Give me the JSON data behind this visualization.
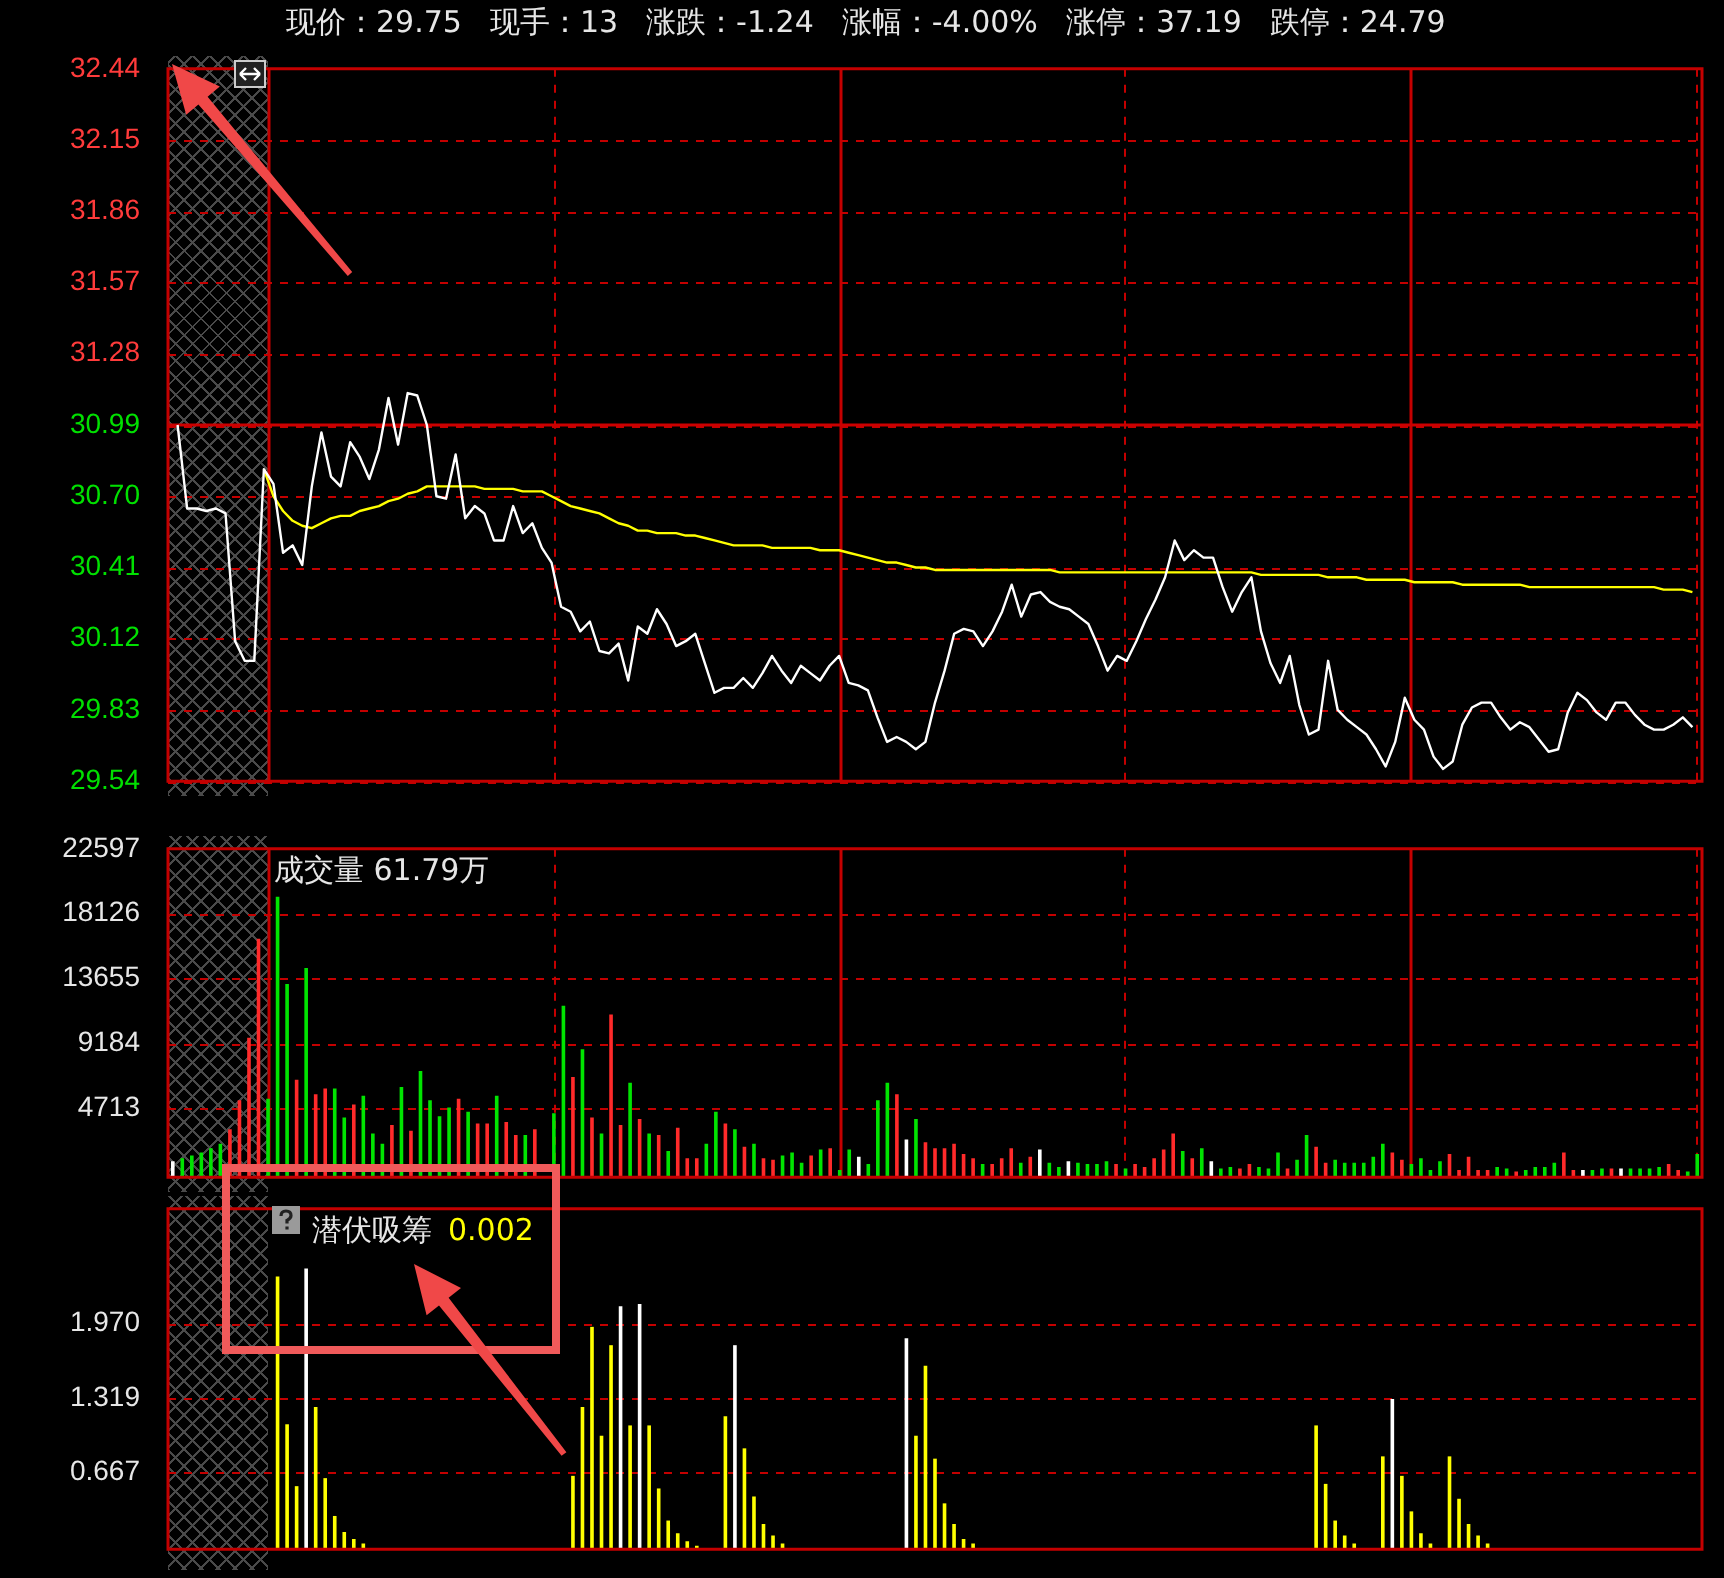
{
  "chart_data": [
    {
      "type": "line",
      "annotations": [
        "现价：29.75",
        "现手：13",
        "涨跌：-1.24",
        "涨幅：-4.00%",
        "涨停：37.19",
        "跌停：24.79"
      ],
      "tick_labels": "y",
      "grid": true,
      "categories": [
        null,
        null,
        null,
        null,
        null,
        null,
        null,
        null,
        null,
        null,
        null,
        null,
        null,
        null,
        null,
        null,
        null,
        null,
        null,
        null,
        null,
        null,
        null,
        null,
        null,
        null,
        null,
        null,
        null,
        null,
        null,
        null,
        null,
        null,
        null,
        null,
        null,
        null,
        null,
        null,
        null,
        null,
        null,
        null,
        null,
        null,
        null,
        null,
        null,
        null,
        null,
        null,
        null,
        null,
        null,
        null,
        null,
        null,
        null,
        null,
        null,
        null,
        null,
        null,
        null,
        null,
        null,
        null,
        null,
        null,
        null,
        null,
        null,
        null,
        null,
        null,
        null,
        null,
        null,
        null,
        null,
        null,
        null,
        null,
        null,
        null,
        null,
        null,
        null,
        null,
        null,
        null,
        null,
        null,
        null,
        null,
        null,
        null,
        null,
        null,
        null,
        null,
        null,
        null,
        null,
        null,
        null,
        null,
        null,
        null,
        null,
        null,
        null,
        null,
        null,
        null,
        null,
        null,
        null,
        null,
        null,
        null,
        null,
        null,
        null,
        null,
        null,
        null,
        null,
        null,
        null,
        null,
        null,
        null,
        null,
        null,
        null,
        null,
        null,
        null,
        null,
        null,
        null,
        null,
        null,
        null,
        null,
        null,
        null,
        null,
        null,
        null,
        null,
        null,
        null,
        null,
        null,
        null,
        null,
        null,
        null
      ],
      "ylim": [
        29.54,
        32.44
      ],
      "yticks": [
        29.54,
        {
          "value": 29.83,
          "label": "29.83"
        },
        {
          "value": 30.12,
          "label": "30.12"
        },
        {
          "value": 30.41,
          "label": "30.41"
        },
        {
          "value": 30.7,
          "label": "30.70"
        },
        {
          "value": 30.99,
          "label": "30.99"
        },
        {
          "value": 31.28,
          "label": "31.28"
        },
        {
          "value": 31.57,
          "label": "31.57"
        },
        {
          "value": 31.86,
          "label": "31.86"
        },
        {
          "value": 32.15,
          "label": "32.15"
        },
        {
          "value": 32.44,
          "label": "32.44"
        }
      ],
      "ref_lines": [
        {
          "axis": "y",
          "value": 30.99,
          "color": "#cc0000"
        }
      ],
      "series": [
        {
          "color": "#ffffff",
          "values": [
            null,
            30.99,
            30.65,
            30.65,
            30.64,
            30.65,
            30.63,
            30.11,
            30.03,
            30.03,
            30.81,
            30.75,
            30.47,
            30.5,
            30.42,
            30.74,
            30.96,
            30.78,
            30.74,
            30.92,
            30.86,
            30.77,
            30.89,
            31.1,
            30.91,
            31.12,
            31.11,
            30.99,
            30.7,
            30.69,
            30.87,
            30.61,
            30.66,
            30.63,
            30.52,
            30.52,
            30.66,
            30.55,
            30.59,
            30.49,
            30.43,
            30.25,
            30.23,
            30.15,
            30.19,
            30.07,
            30.06,
            30.1,
            29.95,
            30.17,
            30.14,
            30.24,
            30.18,
            30.09,
            30.11,
            30.14,
            30.02,
            29.9,
            29.92,
            29.92,
            29.96,
            29.92,
            29.98,
            30.05,
            29.99,
            29.94,
            30.01,
            29.98,
            29.95,
            30.01,
            30.05,
            29.94,
            29.93,
            29.91,
            29.8,
            29.7,
            29.72,
            29.7,
            29.67,
            29.7,
            29.86,
            29.99,
            30.14,
            30.16,
            30.15,
            30.09,
            30.15,
            30.23,
            30.34,
            30.21,
            30.3,
            30.31,
            30.27,
            30.25,
            30.24,
            30.21,
            30.18,
            30.09,
            29.99,
            30.05,
            30.03,
            30.11,
            30.2,
            30.28,
            30.37,
            30.52,
            30.44,
            30.48,
            30.45,
            30.45,
            30.33,
            30.23,
            30.31,
            30.37,
            30.15,
            30.02,
            29.94,
            30.05,
            29.85,
            29.73,
            29.75,
            30.03,
            29.83,
            29.79,
            29.76,
            29.73,
            29.67,
            29.6,
            29.7,
            29.88,
            29.79,
            29.75,
            29.64,
            29.59,
            29.62,
            29.77,
            29.84,
            29.86,
            29.86,
            29.8,
            29.75,
            29.78,
            29.76,
            29.71,
            29.66,
            29.67,
            29.82,
            29.9,
            29.87,
            29.82,
            29.79,
            29.86,
            29.86,
            29.81,
            29.77,
            29.75,
            29.75,
            29.77,
            29.8,
            29.76,
            null
          ]
        },
        {
          "color": "#ffff00",
          "values": [
            null,
            null,
            null,
            null,
            null,
            null,
            null,
            null,
            null,
            null,
            30.81,
            30.7,
            30.64,
            30.6,
            30.58,
            30.57,
            30.59,
            30.61,
            30.62,
            30.62,
            30.64,
            30.65,
            30.66,
            30.68,
            30.69,
            30.71,
            30.72,
            30.74,
            30.74,
            30.74,
            30.74,
            30.74,
            30.74,
            30.73,
            30.73,
            30.73,
            30.73,
            30.72,
            30.72,
            30.72,
            30.7,
            30.68,
            30.66,
            30.65,
            30.64,
            30.63,
            30.61,
            30.59,
            30.58,
            30.56,
            30.56,
            30.55,
            30.55,
            30.55,
            30.54,
            30.54,
            30.53,
            30.52,
            30.51,
            30.5,
            30.5,
            30.5,
            30.5,
            30.49,
            30.49,
            30.49,
            30.49,
            30.49,
            30.48,
            30.48,
            30.48,
            30.47,
            30.46,
            30.45,
            30.44,
            30.43,
            30.43,
            30.42,
            30.41,
            30.41,
            30.4,
            30.4,
            30.4,
            30.4,
            30.4,
            30.4,
            30.4,
            30.4,
            30.4,
            30.4,
            30.4,
            30.4,
            30.4,
            30.39,
            30.39,
            30.39,
            30.39,
            30.39,
            30.39,
            30.39,
            30.39,
            30.39,
            30.39,
            30.39,
            30.39,
            30.39,
            30.39,
            30.39,
            30.39,
            30.39,
            30.39,
            30.39,
            30.39,
            30.39,
            30.38,
            30.38,
            30.38,
            30.38,
            30.38,
            30.38,
            30.38,
            30.37,
            30.37,
            30.37,
            30.37,
            30.36,
            30.36,
            30.36,
            30.36,
            30.36,
            30.35,
            30.35,
            30.35,
            30.35,
            30.35,
            30.34,
            30.34,
            30.34,
            30.34,
            30.34,
            30.34,
            30.34,
            30.33,
            30.33,
            30.33,
            30.33,
            30.33,
            30.33,
            30.33,
            30.33,
            30.33,
            30.33,
            30.33,
            30.33,
            30.33,
            30.33,
            30.32,
            30.32,
            30.32,
            30.31,
            null
          ]
        }
      ]
    },
    {
      "type": "bar",
      "title": "成交量 61.79万",
      "tick_labels": "y",
      "grid": true,
      "ylim": [
        0,
        22597
      ],
      "yticks": [
        4713,
        9184,
        13655,
        18126,
        22597
      ],
      "categories": [
        null,
        null,
        null,
        null,
        null,
        null,
        null,
        null,
        null,
        null,
        null,
        null,
        null,
        null,
        null,
        null,
        null,
        null,
        null,
        null,
        null,
        null,
        null,
        null,
        null,
        null,
        null,
        null,
        null,
        null,
        null,
        null,
        null,
        null,
        null,
        null,
        null,
        null,
        null,
        null,
        null,
        null,
        null,
        null,
        null,
        null,
        null,
        null,
        null,
        null,
        null,
        null,
        null,
        null,
        null,
        null,
        null,
        null,
        null,
        null,
        null,
        null,
        null,
        null,
        null,
        null,
        null,
        null,
        null,
        null,
        null,
        null,
        null,
        null,
        null,
        null,
        null,
        null,
        null,
        null,
        null,
        null,
        null,
        null,
        null,
        null,
        null,
        null,
        null,
        null,
        null,
        null,
        null,
        null,
        null,
        null,
        null,
        null,
        null,
        null,
        null,
        null,
        null,
        null,
        null,
        null,
        null,
        null,
        null,
        null,
        null,
        null,
        null,
        null,
        null,
        null,
        null,
        null,
        null,
        null,
        null,
        null,
        null,
        null,
        null,
        null,
        null,
        null,
        null,
        null,
        null,
        null,
        null,
        null,
        null,
        null,
        null,
        null,
        null,
        null,
        null,
        null,
        null,
        null,
        null,
        null,
        null,
        null,
        null,
        null,
        null,
        null,
        null,
        null,
        null,
        null,
        null,
        null,
        null,
        null,
        null
      ],
      "values": [
        1100,
        1300,
        1500,
        1700,
        2000,
        2300,
        3300,
        5300,
        9600,
        16400,
        5400,
        19300,
        13300,
        6700,
        14400,
        5700,
        6100,
        6100,
        4100,
        5000,
        5600,
        3000,
        2300,
        3600,
        6200,
        3200,
        7300,
        5300,
        4200,
        4800,
        5400,
        4500,
        3700,
        3700,
        5600,
        3800,
        2900,
        2900,
        3300,
        null,
        4400,
        11800,
        6900,
        8800,
        4100,
        3000,
        11200,
        3600,
        6500,
        4000,
        3000,
        2900,
        1800,
        3400,
        1300,
        1300,
        2300,
        4500,
        3700,
        3300,
        2100,
        2300,
        1300,
        1200,
        1500,
        1700,
        1000,
        1500,
        1900,
        2000,
        500,
        1900,
        1400,
        900,
        5300,
        6500,
        5700,
        2600,
        4000,
        2400,
        2000,
        2000,
        2300,
        1600,
        1300,
        900,
        900,
        1300,
        2000,
        1000,
        1400,
        1900,
        1000,
        700,
        1100,
        1000,
        900,
        900,
        1100,
        900,
        600,
        900,
        700,
        1300,
        1900,
        3000,
        1800,
        1300,
        2000,
        1100,
        600,
        700,
        600,
        900,
        700,
        600,
        1700,
        600,
        1200,
        2900,
        2100,
        1000,
        1200,
        1000,
        1000,
        1000,
        1400,
        2300,
        1700,
        1200,
        900,
        1300,
        500,
        1100,
        1600,
        500,
        1400,
        500,
        500,
        700,
        600,
        400,
        500,
        700,
        700,
        1000,
        1700,
        500,
        500,
        500,
        600,
        600,
        600,
        600,
        600,
        600,
        700,
        900,
        500,
        400,
        1600
      ],
      "colors": [
        "#ffffff",
        "#00e400",
        "#00e400",
        "#00e400",
        "#00e400",
        "#00e400",
        "#ff2a2a",
        "#ff2a2a",
        "#ff2a2a",
        "#ff2a2a",
        "#00e400",
        "#00e400",
        "#00e400",
        "#ff2a2a",
        "#00e400",
        "#ff2a2a",
        "#ff2a2a",
        "#00e400",
        "#00e400",
        "#ff2a2a",
        "#00e400",
        "#00e400",
        "#00e400",
        "#ff2a2a",
        "#00e400",
        "#ff2a2a",
        "#00e400",
        "#00e400",
        "#00e400",
        "#00e400",
        "#ff2a2a",
        "#00e400",
        "#ff2a2a",
        "#ff2a2a",
        "#00e400",
        "#ff2a2a",
        "#ff2a2a",
        "#00e400",
        "#ff2a2a",
        "#00e400",
        "#00e400",
        "#00e400",
        "#ff2a2a",
        "#00e400",
        "#ff2a2a",
        "#00e400",
        "#ff2a2a",
        "#ff2a2a",
        "#00e400",
        "#ff2a2a",
        "#00e400",
        "#ff2a2a",
        "#00e400",
        "#ff2a2a",
        "#ff2a2a",
        "#ff2a2a",
        "#00e400",
        "#00e400",
        "#ff2a2a",
        "#00e400",
        "#ff2a2a",
        "#00e400",
        "#ff2a2a",
        "#ff2a2a",
        "#00e400",
        "#00e400",
        "#00e400",
        "#ff2a2a",
        "#00e400",
        "#ff2a2a",
        "#00e400",
        "#00e400",
        "#ffffff",
        "#00e400",
        "#00e400",
        "#00e400",
        "#ff2a2a",
        "#ffffff",
        "#00e400",
        "#ff2a2a",
        "#ff2a2a",
        "#ff2a2a",
        "#ff2a2a",
        "#ff2a2a",
        "#ff2a2a",
        "#00e400",
        "#ff2a2a",
        "#ff2a2a",
        "#ff2a2a",
        "#00e400",
        "#ff2a2a",
        "#ffffff",
        "#00e400",
        "#00e400",
        "#ffffff",
        "#00e400",
        "#00e400",
        "#00e400",
        "#00e400",
        "#ff2a2a",
        "#00e400",
        "#ff2a2a",
        "#ff2a2a",
        "#ff2a2a",
        "#ff2a2a",
        "#ff2a2a",
        "#00e400",
        "#ff2a2a",
        "#00e400",
        "#ffffff",
        "#00e400",
        "#00e400",
        "#ff2a2a",
        "#ff2a2a",
        "#00e400",
        "#00e400",
        "#00e400",
        "#ff2a2a",
        "#00e400",
        "#00e400",
        "#ff2a2a",
        "#ff2a2a",
        "#00e400",
        "#00e400",
        "#00e400",
        "#00e400",
        "#00e400",
        "#00e400",
        "#ff2a2a",
        "#ff2a2a",
        "#00e400",
        "#00e400",
        "#00e400",
        "#00e400",
        "#ff2a2a",
        "#ff2a2a",
        "#ff2a2a",
        "#ff2a2a",
        "#ff2a2a",
        "#00e400",
        "#00e400",
        "#ff2a2a",
        "#00e400",
        "#00e400",
        "#00e400",
        "#00e400",
        "#ff2a2a",
        "#ff2a2a",
        "#ffffff",
        "#00e400",
        "#00e400",
        "#ff2a2a",
        "#ffffff",
        "#00e400",
        "#00e400",
        "#00e400",
        "#00e400",
        "#ff2a2a",
        "#ff2a2a",
        "#00e400",
        "#00e400"
      ]
    },
    {
      "type": "bar",
      "title": "潜伏吸筹",
      "annotations": [
        "0.002"
      ],
      "tick_labels": "y",
      "grid": "y",
      "ylim": [
        0,
        2.97
      ],
      "yticks": [
        0.667,
        1.319,
        {
          "value": 1.97,
          "label": "1.970"
        }
      ],
      "categories": [
        null,
        null,
        null,
        null,
        null,
        null,
        null,
        null,
        null,
        null,
        null,
        null,
        null,
        null,
        null,
        null,
        null,
        null,
        null,
        null,
        null,
        null,
        null,
        null,
        null,
        null,
        null,
        null,
        null,
        null,
        null,
        null,
        null,
        null,
        null,
        null,
        null,
        null,
        null,
        null,
        null,
        null,
        null,
        null,
        null,
        null,
        null,
        null,
        null,
        null,
        null,
        null,
        null,
        null,
        null,
        null,
        null,
        null,
        null,
        null,
        null,
        null,
        null,
        null,
        null,
        null,
        null,
        null,
        null,
        null,
        null,
        null,
        null,
        null,
        null,
        null,
        null,
        null,
        null,
        null,
        null,
        null,
        null,
        null,
        null,
        null,
        null,
        null,
        null,
        null,
        null,
        null,
        null,
        null,
        null,
        null,
        null,
        null,
        null,
        null,
        null,
        null,
        null,
        null,
        null,
        null,
        null,
        null,
        null,
        null,
        null,
        null,
        null,
        null,
        null,
        null,
        null,
        null,
        null,
        null,
        null,
        null,
        null,
        null,
        null,
        null,
        null,
        null,
        null,
        null,
        null,
        null,
        null,
        null,
        null,
        null,
        null,
        null,
        null,
        null,
        null,
        null,
        null,
        null,
        null,
        null,
        null,
        null,
        null,
        null,
        null,
        null,
        null,
        null,
        null,
        null,
        null,
        null,
        null,
        null,
        null
      ],
      "values": [
        null,
        null,
        null,
        null,
        null,
        null,
        null,
        null,
        null,
        null,
        0,
        2.38,
        1.09,
        0.55,
        2.45,
        1.24,
        0.62,
        0.29,
        0.15,
        0.09,
        0.05,
        null,
        0,
        0,
        0,
        0,
        0,
        0,
        0,
        0,
        0,
        0,
        0,
        0,
        0,
        0,
        0,
        0,
        0,
        0,
        0,
        0,
        0.64,
        1.24,
        1.94,
        0.99,
        1.78,
        2.12,
        1.08,
        2.14,
        1.08,
        0.53,
        0.25,
        0.14,
        0.07,
        0.03,
        null,
        0,
        1.16,
        1.78,
        0.88,
        0.46,
        0.22,
        0.12,
        0.05,
        null,
        0,
        0,
        0,
        0,
        0,
        0,
        0,
        0,
        0,
        0,
        0,
        1.84,
        0.99,
        1.6,
        0.79,
        0.4,
        0.22,
        0.09,
        0.05,
        null,
        0,
        0,
        0,
        0,
        0,
        0,
        0,
        0,
        0,
        0,
        0,
        0,
        0,
        0,
        0,
        0,
        0,
        0,
        0,
        0,
        0,
        0,
        0,
        0,
        0,
        0,
        0,
        0,
        0,
        0,
        0,
        0,
        0,
        0,
        1.08,
        0.57,
        0.25,
        0.12,
        0.05,
        null,
        0,
        0.81,
        1.31,
        0.64,
        0.33,
        0.14,
        0.05,
        0,
        0.81,
        0.44,
        0.22,
        0.12,
        0.05,
        null,
        0,
        0,
        0,
        0,
        0,
        0,
        0,
        0,
        0,
        0,
        0,
        0,
        0,
        0,
        0,
        0,
        0,
        0,
        0,
        0,
        0
      ],
      "colors": [
        "#ffff00",
        "#ffff00",
        "#ffff00",
        "#ffff00",
        "#ffff00",
        "#ffff00",
        "#ffff00",
        "#ffff00",
        "#ffff00",
        "#ffff00",
        "#ffff00",
        "#ffff00",
        "#ffff00",
        "#ffff00",
        "#ffffff",
        "#ffff00",
        "#ffff00",
        "#ffff00",
        "#ffff00",
        "#ffff00",
        "#ffff00",
        "#ffff00",
        "#ffff00",
        "#ffff00",
        "#ffff00",
        "#ffff00",
        "#ffff00",
        "#ffff00",
        "#ffff00",
        "#ffff00",
        "#ffff00",
        "#ffff00",
        "#ffff00",
        "#ffff00",
        "#ffff00",
        "#ffff00",
        "#ffff00",
        "#ffff00",
        "#ffff00",
        "#ffff00",
        "#ffff00",
        "#ffff00",
        "#ffff00",
        "#ffff00",
        "#ffff00",
        "#ffff00",
        "#ffff00",
        "#ffffff",
        "#ffff00",
        "#ffffff",
        "#ffff00",
        "#ffff00",
        "#ffff00",
        "#ffff00",
        "#ffff00",
        "#ffff00",
        "#ffff00",
        "#ffff00",
        "#ffff00",
        "#ffffff",
        "#ffff00",
        "#ffff00",
        "#ffff00",
        "#ffff00",
        "#ffff00",
        "#ffff00",
        "#ffff00",
        "#ffff00",
        "#ffff00",
        "#ffff00",
        "#ffff00",
        "#ffff00",
        "#ffff00",
        "#ffff00",
        "#ffff00",
        "#ffff00",
        "#ffff00",
        "#ffffff",
        "#ffff00",
        "#ffff00",
        "#ffff00",
        "#ffff00",
        "#ffff00",
        "#ffff00",
        "#ffff00",
        "#ffff00",
        "#ffff00",
        "#ffff00",
        "#ffff00",
        "#ffff00",
        "#ffff00",
        "#ffff00",
        "#ffff00",
        "#ffff00",
        "#ffff00",
        "#ffff00",
        "#ffff00",
        "#ffff00",
        "#ffff00",
        "#ffff00",
        "#ffff00",
        "#ffff00",
        "#ffff00",
        "#ffff00",
        "#ffff00",
        "#ffff00",
        "#ffff00",
        "#ffff00",
        "#ffff00",
        "#ffff00",
        "#ffff00",
        "#ffff00",
        "#ffff00",
        "#ffff00",
        "#ffff00",
        "#ffff00",
        "#ffff00",
        "#ffff00",
        "#ffff00",
        "#ffff00",
        "#ffff00",
        "#ffff00",
        "#ffff00",
        "#ffff00",
        "#ffff00",
        "#ffff00",
        "#ffff00",
        "#ffff00",
        "#ffffff",
        "#ffff00",
        "#ffff00",
        "#ffff00",
        "#ffff00",
        "#ffff00",
        "#ffff00",
        "#ffff00",
        "#ffff00",
        "#ffff00",
        "#ffff00",
        "#ffff00",
        "#ffff00",
        "#ffff00",
        "#ffff00",
        "#ffff00",
        "#ffff00",
        "#ffff00",
        "#ffff00",
        "#ffff00",
        "#ffff00",
        "#ffff00",
        "#ffff00",
        "#ffff00",
        "#ffff00",
        "#ffff00",
        "#ffff00",
        "#ffff00",
        "#ffff00",
        "#ffff00",
        "#ffff00",
        "#ffff00",
        "#ffff00"
      ]
    }
  ]
}
